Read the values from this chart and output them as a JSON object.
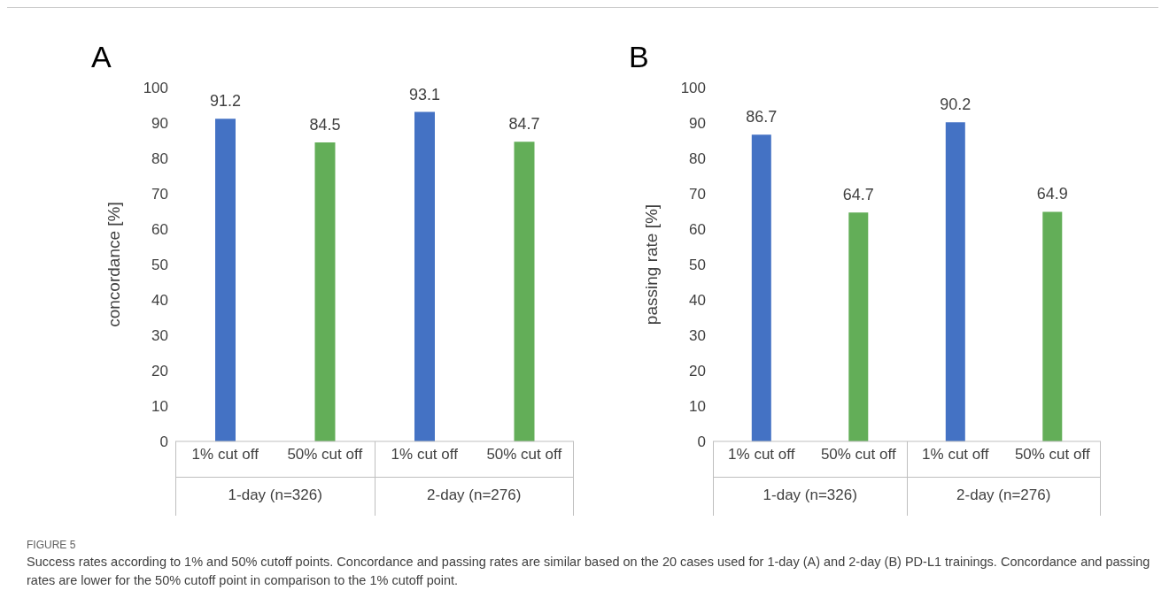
{
  "chart_data": [
    {
      "type": "bar",
      "title": "A",
      "ylabel": "concordance [%]",
      "categories": [
        "1% cut off",
        "50% cut off",
        "1% cut off",
        "50% cut off"
      ],
      "values": [
        91.2,
        84.5,
        93.1,
        84.7
      ],
      "colors": [
        "#4472c4",
        "#63ae58",
        "#4472c4",
        "#63ae58"
      ],
      "ylim": [
        0,
        100
      ],
      "yticks": [
        0,
        10,
        20,
        30,
        40,
        50,
        60,
        70,
        80,
        90,
        100
      ],
      "data_labels": true,
      "grid": false,
      "annotations": [
        "1-day (n=326)",
        "2-day (n=276)"
      ]
    },
    {
      "type": "bar",
      "title": "B",
      "ylabel": "passing rate [%]",
      "categories": [
        "1% cut off",
        "50% cut off",
        "1% cut off",
        "50% cut off"
      ],
      "values": [
        86.7,
        64.7,
        90.2,
        64.9
      ],
      "colors": [
        "#4472c4",
        "#63ae58",
        "#4472c4",
        "#63ae58"
      ],
      "ylim": [
        0,
        100
      ],
      "yticks": [
        0,
        10,
        20,
        30,
        40,
        50,
        60,
        70,
        80,
        90,
        100
      ],
      "data_labels": true,
      "grid": false,
      "annotations": [
        "1-day (n=326)",
        "2-day (n=276)"
      ]
    },
    {
      "type": "other",
      "annotations": [
        "FIGURE 5",
        "Success rates according to 1% and 50% cutoff points. Concordance and passing rates are similar based on the 20 cases used for 1-day (A) and 2-day (B) PD-L1 trainings. Concordance and passing rates are lower for the 50% cutoff point in comparison to the 1% cutoff point."
      ]
    }
  ]
}
